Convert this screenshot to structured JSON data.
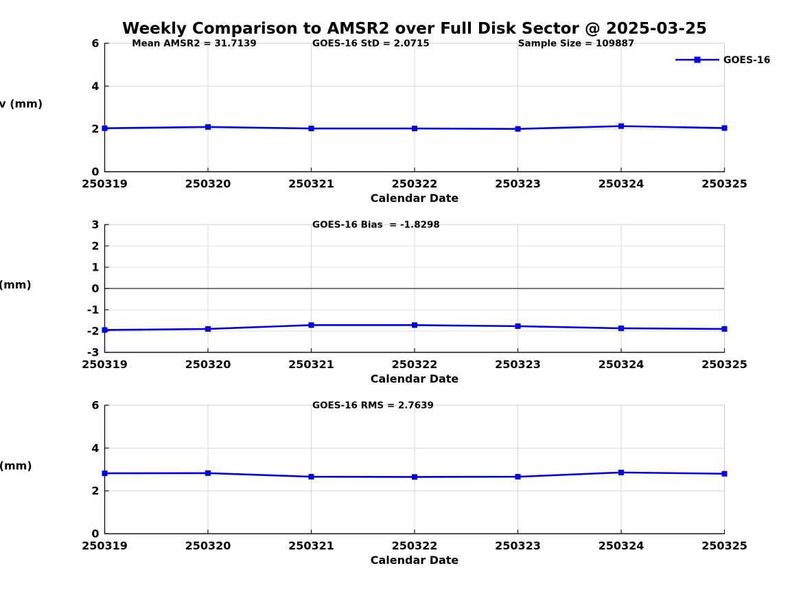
{
  "title": "Weekly Comparison to AMSR2 over Full Disk Sector @ 2025-03-25",
  "legend": {
    "label": "GOES-16",
    "position": "top-right"
  },
  "colors": {
    "line": "#0000DD",
    "marker": "#0000EE",
    "grid": "#D8D8D8",
    "spine_dark": "#141414",
    "spine_light": "#C8C8C8",
    "zero_line": "#4A4A4A",
    "text": "#000000",
    "background": "#FFFFFF"
  },
  "x_axis": {
    "label": "Calendar Date",
    "categories": [
      "250319",
      "250320",
      "250321",
      "250322",
      "250323",
      "250324",
      "250325"
    ]
  },
  "chart_data": [
    {
      "type": "line",
      "name": "std-dev-panel",
      "ylabel": "Std Dev (mm)",
      "xlabel": "Calendar Date",
      "ylim": [
        0,
        6
      ],
      "yticks": [
        0,
        2,
        4,
        6
      ],
      "grid": true,
      "zero_line": false,
      "categories": [
        "250319",
        "250320",
        "250321",
        "250322",
        "250323",
        "250324",
        "250325"
      ],
      "series": [
        {
          "name": "GOES-16",
          "values": [
            2.03,
            2.09,
            2.02,
            2.02,
            2.0,
            2.13,
            2.04
          ]
        }
      ],
      "annotations": [
        {
          "text": "Mean AMSR2 = 31.7139",
          "xfrac": 0.044
        },
        {
          "text": "GOES-16 StD = 2.0715",
          "xfrac": 0.335
        },
        {
          "text": "Sample Size = 109887",
          "xfrac": 0.667
        }
      ]
    },
    {
      "type": "line",
      "name": "bias-panel",
      "ylabel": "Bias (mm)",
      "xlabel": "Calendar Date",
      "ylim": [
        -3,
        3
      ],
      "yticks": [
        -3,
        -2,
        -1,
        0,
        1,
        2,
        3
      ],
      "grid": true,
      "zero_line": true,
      "categories": [
        "250319",
        "250320",
        "250321",
        "250322",
        "250323",
        "250324",
        "250325"
      ],
      "series": [
        {
          "name": "GOES-16",
          "values": [
            -1.95,
            -1.9,
            -1.72,
            -1.72,
            -1.77,
            -1.87,
            -1.9
          ]
        }
      ],
      "annotations": [
        {
          "text": "GOES-16 Bias  = -1.8298",
          "xfrac": 0.335
        }
      ]
    },
    {
      "type": "line",
      "name": "rms-panel",
      "ylabel": "RMS (mm)",
      "xlabel": "Calendar Date",
      "ylim": [
        0,
        6
      ],
      "yticks": [
        0,
        2,
        4,
        6
      ],
      "grid": true,
      "zero_line": false,
      "categories": [
        "250319",
        "250320",
        "250321",
        "250322",
        "250323",
        "250324",
        "250325"
      ],
      "series": [
        {
          "name": "GOES-16",
          "values": [
            2.82,
            2.83,
            2.66,
            2.65,
            2.66,
            2.86,
            2.8
          ]
        }
      ],
      "annotations": [
        {
          "text": "GOES-16 RMS = 2.7639",
          "xfrac": 0.335
        }
      ]
    }
  ]
}
